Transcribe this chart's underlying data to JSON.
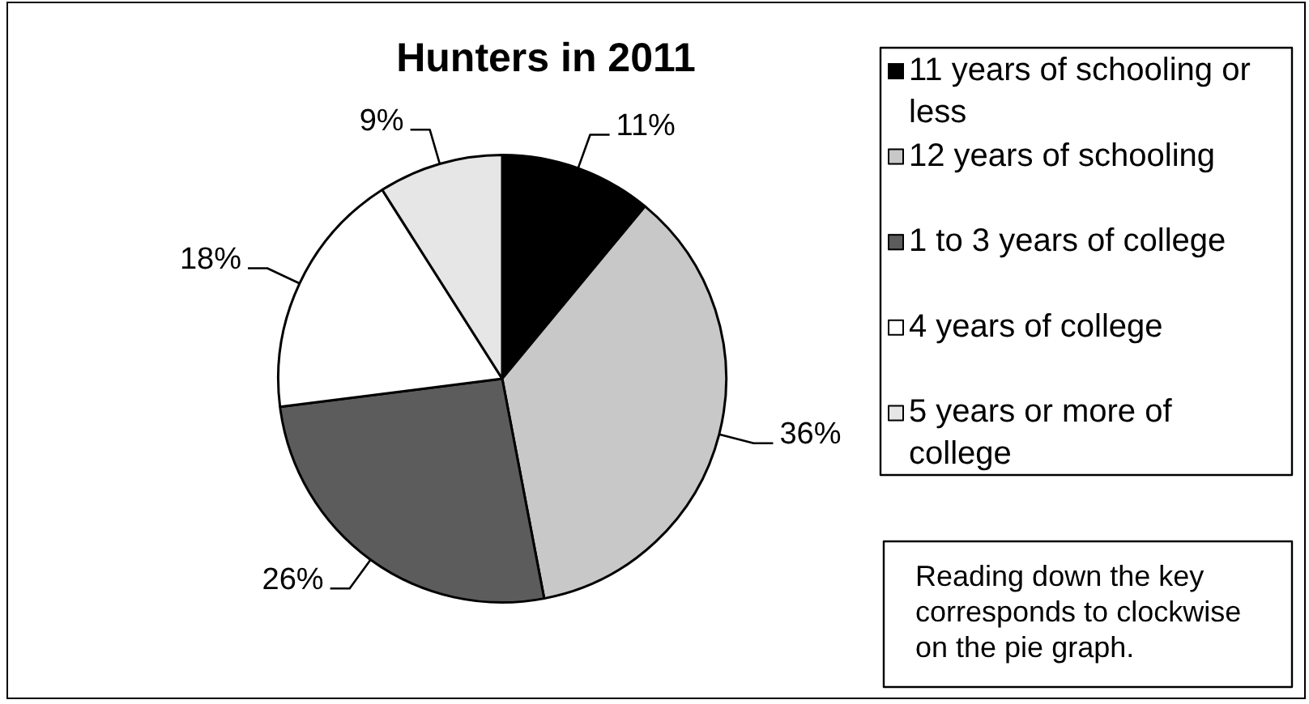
{
  "chart_data": {
    "type": "pie",
    "title": "Hunters in 2011",
    "categories": [
      "11 years of schooling or less",
      "12 years of schooling",
      "1 to 3 years of college",
      "4 years of college",
      "5 years or more of college"
    ],
    "values": [
      11,
      36,
      26,
      18,
      9
    ],
    "colors": [
      "#000000",
      "#c8c8c8",
      "#5c5c5c",
      "#ffffff",
      "#e6e6e6"
    ],
    "value_labels": [
      "11%",
      "36%",
      "26%",
      "18%",
      "9%"
    ],
    "legend": "right",
    "annotations": [
      "Reading down the key corresponds to clockwise on the pie graph."
    ]
  }
}
